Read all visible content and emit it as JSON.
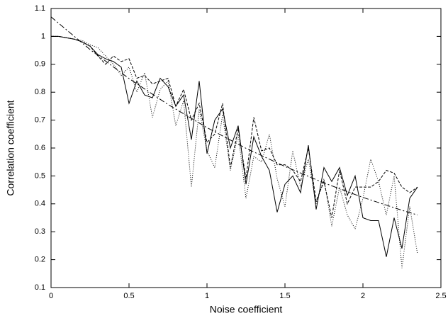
{
  "chart_data": {
    "type": "line",
    "xlabel": "Noise coefficient",
    "ylabel": "Correlation coefficient",
    "x": [
      0,
      0.05,
      0.1,
      0.15,
      0.2,
      0.25,
      0.3,
      0.35,
      0.4,
      0.45,
      0.5,
      0.55,
      0.6,
      0.65,
      0.7,
      0.75,
      0.8,
      0.85,
      0.9,
      0.95,
      1,
      1.05,
      1.1,
      1.15,
      1.2,
      1.25,
      1.3,
      1.35,
      1.4,
      1.45,
      1.5,
      1.55,
      1.6,
      1.65,
      1.7,
      1.75,
      1.8,
      1.85,
      1.9,
      1.95,
      2,
      2.05,
      2.1,
      2.15,
      2.2,
      2.25,
      2.3,
      2.35
    ],
    "series": [
      {
        "color": "#000000",
        "dash": "none",
        "values": [
          1,
          1,
          0.995,
          0.99,
          0.98,
          0.965,
          0.935,
          0.92,
          0.91,
          0.89,
          0.76,
          0.84,
          0.79,
          0.78,
          0.85,
          0.82,
          0.75,
          0.79,
          0.63,
          0.84,
          0.58,
          0.7,
          0.74,
          0.6,
          0.68,
          0.47,
          0.64,
          0.57,
          0.52,
          0.37,
          0.47,
          0.5,
          0.44,
          0.61,
          0.38,
          0.53,
          0.48,
          0.53,
          0.43,
          0.5,
          0.35,
          0.34,
          0.34,
          0.21,
          0.35,
          0.24,
          0.42,
          0.46
        ]
      },
      {
        "color": "#000000",
        "dash": "4,2",
        "values": [
          1,
          1,
          0.995,
          0.99,
          0.98,
          0.965,
          0.93,
          0.9,
          0.93,
          0.91,
          0.92,
          0.85,
          0.86,
          0.83,
          0.84,
          0.85,
          0.75,
          0.81,
          0.7,
          0.76,
          0.62,
          0.65,
          0.76,
          0.53,
          0.67,
          0.49,
          0.71,
          0.59,
          0.6,
          0.54,
          0.54,
          0.52,
          0.48,
          0.6,
          0.41,
          0.48,
          0.35,
          0.52,
          0.4,
          0.46,
          0.46,
          0.46,
          0.48,
          0.52,
          0.51,
          0.46,
          0.44,
          0.46
        ]
      },
      {
        "color": "#000000",
        "dash": "1,2",
        "values": [
          1,
          1,
          0.995,
          0.99,
          0.985,
          0.97,
          0.96,
          0.93,
          0.9,
          0.86,
          0.89,
          0.8,
          0.87,
          0.71,
          0.81,
          0.84,
          0.68,
          0.77,
          0.46,
          0.74,
          0.59,
          0.53,
          0.72,
          0.52,
          0.65,
          0.42,
          0.57,
          0.55,
          0.65,
          0.49,
          0.39,
          0.59,
          0.46,
          0.56,
          0.4,
          0.49,
          0.32,
          0.46,
          0.36,
          0.31,
          0.42,
          0.56,
          0.48,
          0.36,
          0.5,
          0.17,
          0.39,
          0.22
        ]
      },
      {
        "color": "#000000",
        "dash": "8,3,2,3",
        "x": [
          0,
          0.25,
          0.5,
          0.75,
          1,
          1.25,
          1.5,
          1.75,
          2,
          2.25,
          2.35
        ],
        "values": [
          1.07,
          0.953,
          0.849,
          0.756,
          0.673,
          0.599,
          0.534,
          0.475,
          0.423,
          0.377,
          0.36
        ]
      }
    ],
    "xlim": [
      0,
      2.5
    ],
    "xticks": [
      0,
      0.5,
      1,
      1.5,
      2,
      2.5
    ],
    "ylim": [
      0.1,
      1.1
    ],
    "yticks": [
      0.1,
      0.2,
      0.3,
      0.4,
      0.5,
      0.6,
      0.7,
      0.8,
      0.9,
      1,
      1.1
    ]
  }
}
